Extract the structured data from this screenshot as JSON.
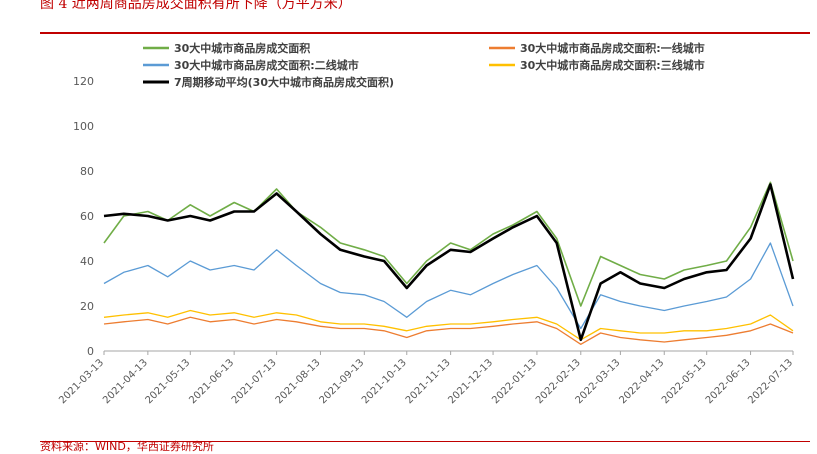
{
  "header": {
    "title": "图 4   近两周商品房成交面积有所下降（万平方米）",
    "source": "资料来源：WIND，华西证券研究所"
  },
  "colors": {
    "accent": "#c00000"
  },
  "chart_data": {
    "type": "line",
    "title": "",
    "xlabel": "",
    "ylabel": "",
    "ylim": [
      0,
      120
    ],
    "yticks": [
      "0",
      "20",
      "40",
      "60",
      "80",
      "100",
      "120"
    ],
    "xticks": [
      "2021-03-13",
      "2021-04-13",
      "2021-05-13",
      "2021-06-13",
      "2021-07-13",
      "2021-08-13",
      "2021-09-13",
      "2021-10-13",
      "2021-11-13",
      "2021-12-13",
      "2022-01-13",
      "2022-02-13",
      "2022-03-13",
      "2022-04-13",
      "2022-05-13",
      "2022-06-13",
      "2022-07-13"
    ],
    "grid": false,
    "legend_position": "top",
    "x": [
      "2021-03-13",
      "2021-03-27",
      "2021-04-13",
      "2021-04-27",
      "2021-05-13",
      "2021-05-27",
      "2021-06-13",
      "2021-06-27",
      "2021-07-13",
      "2021-07-27",
      "2021-08-13",
      "2021-08-27",
      "2021-09-13",
      "2021-09-27",
      "2021-10-13",
      "2021-10-27",
      "2021-11-13",
      "2021-11-27",
      "2021-12-13",
      "2021-12-27",
      "2022-01-13",
      "2022-01-27",
      "2022-02-13",
      "2022-02-27",
      "2022-03-13",
      "2022-03-27",
      "2022-04-13",
      "2022-04-27",
      "2022-05-13",
      "2022-05-27",
      "2022-06-13",
      "2022-06-27",
      "2022-07-13"
    ],
    "series": [
      {
        "name": "30大中城市商品房成交面积",
        "color": "#70ad47",
        "width": 1.6,
        "values": [
          48,
          60,
          62,
          58,
          65,
          60,
          66,
          62,
          72,
          62,
          55,
          48,
          45,
          42,
          30,
          40,
          48,
          45,
          52,
          56,
          62,
          50,
          20,
          42,
          38,
          34,
          32,
          36,
          38,
          40,
          55,
          75,
          40
        ]
      },
      {
        "name": "30大中城市商品房成交面积:一线城市",
        "color": "#ed7d31",
        "width": 1.3,
        "values": [
          12,
          13,
          14,
          12,
          15,
          13,
          14,
          12,
          14,
          13,
          11,
          10,
          10,
          9,
          6,
          9,
          10,
          10,
          11,
          12,
          13,
          10,
          3,
          8,
          6,
          5,
          4,
          5,
          6,
          7,
          9,
          12,
          8
        ]
      },
      {
        "name": "30大中城市商品房成交面积:二线城市",
        "color": "#5b9bd5",
        "width": 1.3,
        "values": [
          30,
          35,
          38,
          33,
          40,
          36,
          38,
          36,
          45,
          38,
          30,
          26,
          25,
          22,
          15,
          22,
          27,
          25,
          30,
          34,
          38,
          28,
          10,
          25,
          22,
          20,
          18,
          20,
          22,
          24,
          32,
          48,
          20
        ]
      },
      {
        "name": "30大中城市商品房成交面积:三线城市",
        "color": "#ffc000",
        "width": 1.3,
        "values": [
          15,
          16,
          17,
          15,
          18,
          16,
          17,
          15,
          17,
          16,
          13,
          12,
          12,
          11,
          9,
          11,
          12,
          12,
          13,
          14,
          15,
          12,
          5,
          10,
          9,
          8,
          8,
          9,
          9,
          10,
          12,
          16,
          9
        ]
      },
      {
        "name": "7周期移动平均(30大中城市商品房成交面积)",
        "color": "#000000",
        "width": 2.6,
        "values": [
          60,
          61,
          60,
          58,
          60,
          58,
          62,
          62,
          70,
          62,
          52,
          45,
          42,
          40,
          28,
          38,
          45,
          44,
          50,
          55,
          60,
          48,
          5,
          30,
          35,
          30,
          28,
          32,
          35,
          36,
          50,
          74,
          32
        ]
      }
    ]
  }
}
